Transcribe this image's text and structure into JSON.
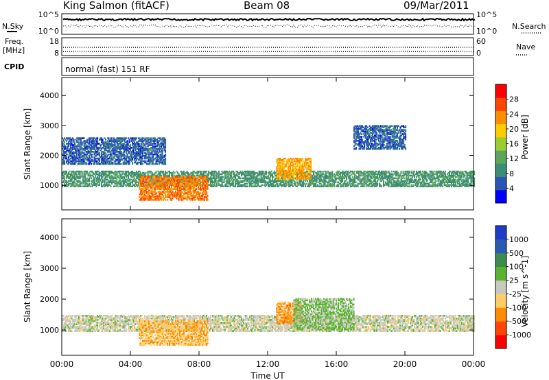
{
  "header": {
    "station": "King Salmon (fitACF)",
    "beam": "Beam 08",
    "date": "09/Mar/2011"
  },
  "top_panels": {
    "nsky_label": "N.Sky",
    "nsky_ticks": [
      "10^5",
      "10^0"
    ],
    "nsearch_label": "N.Search",
    "nsearch_ticks": [
      "10^5",
      "10^0"
    ],
    "freq_label_1": "Freq.",
    "freq_label_2": "[MHz]",
    "freq_ticks": [
      "18",
      "8"
    ],
    "nave_label": "Nave",
    "nave_ticks": [
      "60",
      "0"
    ],
    "cpid_label": "CPID",
    "cpid_value": "normal (fast) 151 RF"
  },
  "colors": {
    "power_scale": [
      "#0000ff",
      "#2a55b4",
      "#3d8c78",
      "#5aa65a",
      "#9acd32",
      "#ffcc00",
      "#ff8c00",
      "#ff4500",
      "#ff0000"
    ],
    "velocity_scale": [
      "#ff0000",
      "#ff4500",
      "#ff8c00",
      "#ffcc66",
      "#c8c8be",
      "#5ab432",
      "#3c8c50",
      "#2a5ab4",
      "#1e3cc8"
    ],
    "gray": "#c8c8be"
  },
  "chart_data": [
    {
      "type": "heatmap",
      "panel": "power",
      "ylabel": "Slant Range [km]",
      "yticks": [
        "4000",
        "3000",
        "2000",
        "1000"
      ],
      "ylim": [
        180,
        4600
      ],
      "colorbar_label": "Power [dB]",
      "colorbar_ticks": [
        "28",
        "24",
        "20",
        "16",
        "12",
        "8",
        "4"
      ],
      "colorbar_range": [
        0,
        32
      ],
      "xlim": [
        0,
        24
      ],
      "xticks": [
        "00:00",
        "04:00",
        "08:00",
        "12:00",
        "16:00",
        "20:00",
        "00:00"
      ],
      "xlabel": "Time UT",
      "regions": [
        {
          "t": [
            0,
            24
          ],
          "range": [
            950,
            1450
          ],
          "value": 10
        },
        {
          "t": [
            0,
            6
          ],
          "range": [
            1700,
            2600
          ],
          "value": 6
        },
        {
          "t": [
            4.5,
            8.5
          ],
          "range": [
            500,
            1300
          ],
          "value": 24
        },
        {
          "t": [
            12.5,
            14.5
          ],
          "range": [
            1200,
            1900
          ],
          "value": 22
        },
        {
          "t": [
            17,
            20
          ],
          "range": [
            2200,
            3000
          ],
          "value": 6
        }
      ]
    },
    {
      "type": "heatmap",
      "panel": "velocity",
      "ylabel": "Slant Range [km]",
      "yticks": [
        "4000",
        "3000",
        "2000",
        "1000"
      ],
      "ylim": [
        180,
        4600
      ],
      "colorbar_label": "Velocity [m s^-1]",
      "colorbar_ticks": [
        "1000",
        "500",
        "100",
        "25",
        "-25",
        "-100",
        "-500",
        "-1000"
      ],
      "colorbar_range": [
        -1000,
        1000
      ],
      "xlim": [
        0,
        24
      ],
      "xticks": [
        "00:00",
        "04:00",
        "08:00",
        "12:00",
        "16:00",
        "20:00",
        "00:00"
      ],
      "xlabel": "Time UT",
      "regions": [
        {
          "t": [
            0,
            24
          ],
          "range": [
            950,
            1450
          ],
          "value": 0
        },
        {
          "t": [
            4.5,
            8.5
          ],
          "range": [
            500,
            1300
          ],
          "value": -300
        },
        {
          "t": [
            12.5,
            14
          ],
          "range": [
            1200,
            1900
          ],
          "value": -400
        },
        {
          "t": [
            13.5,
            17
          ],
          "range": [
            1000,
            2000
          ],
          "value": 150
        }
      ]
    }
  ]
}
